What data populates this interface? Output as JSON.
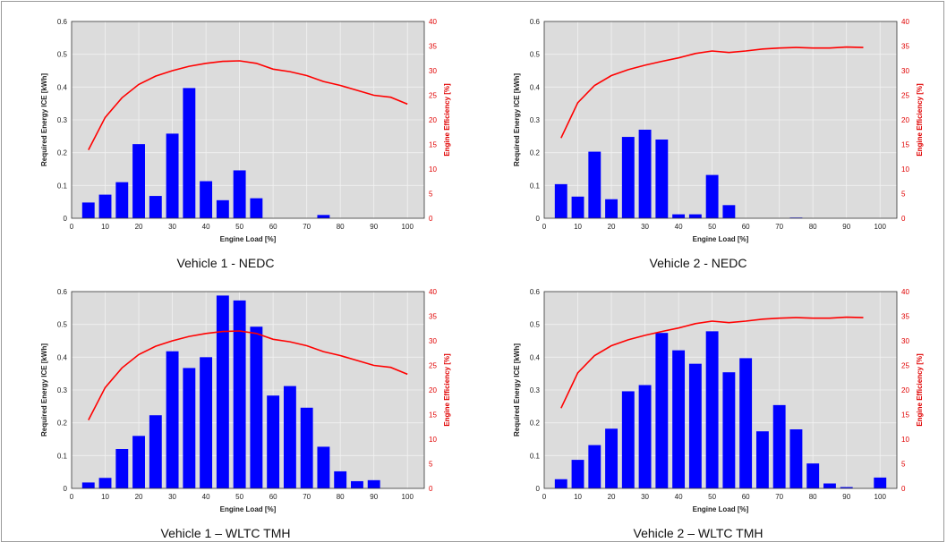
{
  "chart_data": [
    {
      "type": "bar",
      "title": "Vehicle 1 - NEDC",
      "xlabel": "Engine Load [%]",
      "ylabel": "Required Energy ICE [kWh]",
      "y2label": "Engine Efficiency [%]",
      "xlim": [
        0,
        105
      ],
      "ylim": [
        0,
        0.6
      ],
      "y2lim": [
        0,
        40
      ],
      "xticks": [
        0,
        10,
        20,
        30,
        40,
        50,
        60,
        70,
        80,
        90,
        100
      ],
      "yticks": [
        0,
        0.1,
        0.2,
        0.3,
        0.4,
        0.5,
        0.6
      ],
      "y2ticks": [
        0,
        5,
        10,
        15,
        20,
        25,
        30,
        35,
        40
      ],
      "grid": true,
      "bar_color": "#0000ff",
      "line_color": "#ff0000",
      "bars": {
        "x": [
          5,
          10,
          15,
          20,
          25,
          30,
          35,
          40,
          45,
          50,
          55,
          75
        ],
        "values": [
          0.048,
          0.072,
          0.11,
          0.226,
          0.068,
          0.258,
          0.397,
          0.113,
          0.055,
          0.146,
          0.061,
          0.01
        ]
      },
      "efficiency": {
        "x": [
          5,
          10,
          15,
          20,
          25,
          30,
          35,
          40,
          45,
          50,
          55,
          60,
          65,
          70,
          75,
          80,
          85,
          90,
          95,
          100
        ],
        "values": [
          13.9,
          20.5,
          24.5,
          27.2,
          28.9,
          30.0,
          30.9,
          31.5,
          31.9,
          32.0,
          31.5,
          30.3,
          29.8,
          29.0,
          27.8,
          27.0,
          26.0,
          25.0,
          24.6,
          23.2
        ]
      }
    },
    {
      "type": "bar",
      "title": "Vehicle 2 - NEDC",
      "xlabel": "Engine Load [%]",
      "ylabel": "Required Energy ICE [kWh]",
      "y2label": "Engine Efficiency [%]",
      "xlim": [
        0,
        105
      ],
      "ylim": [
        0,
        0.6
      ],
      "y2lim": [
        0,
        40
      ],
      "xticks": [
        0,
        10,
        20,
        30,
        40,
        50,
        60,
        70,
        80,
        90,
        100
      ],
      "yticks": [
        0,
        0.1,
        0.2,
        0.3,
        0.4,
        0.5,
        0.6
      ],
      "y2ticks": [
        0,
        5,
        10,
        15,
        20,
        25,
        30,
        35,
        40
      ],
      "grid": true,
      "bar_color": "#0000ff",
      "line_color": "#ff0000",
      "bars": {
        "x": [
          5,
          10,
          15,
          20,
          25,
          30,
          35,
          40,
          45,
          50,
          55,
          75
        ],
        "values": [
          0.104,
          0.066,
          0.203,
          0.058,
          0.248,
          0.27,
          0.24,
          0.012,
          0.012,
          0.132,
          0.04,
          0.002
        ]
      },
      "efficiency": {
        "x": [
          5,
          10,
          15,
          20,
          25,
          30,
          35,
          40,
          45,
          50,
          55,
          60,
          65,
          70,
          75,
          80,
          85,
          90,
          95
        ],
        "values": [
          16.3,
          23.5,
          27.0,
          29.0,
          30.2,
          31.1,
          31.9,
          32.6,
          33.5,
          34.0,
          33.7,
          34.0,
          34.4,
          34.6,
          34.7,
          34.6,
          34.6,
          34.8,
          34.7
        ]
      }
    },
    {
      "type": "bar",
      "title": "Vehicle 1 – WLTC TMH",
      "xlabel": "Engine Load [%]",
      "ylabel": "Required Energy ICE [kWh]",
      "y2label": "Engine Efficiency [%]",
      "xlim": [
        0,
        105
      ],
      "ylim": [
        0,
        0.6
      ],
      "y2lim": [
        0,
        40
      ],
      "xticks": [
        0,
        10,
        20,
        30,
        40,
        50,
        60,
        70,
        80,
        90,
        100
      ],
      "yticks": [
        0,
        0.1,
        0.2,
        0.3,
        0.4,
        0.5,
        0.6
      ],
      "y2ticks": [
        0,
        5,
        10,
        15,
        20,
        25,
        30,
        35,
        40
      ],
      "grid": true,
      "bar_color": "#0000ff",
      "line_color": "#ff0000",
      "bars": {
        "x": [
          5,
          10,
          15,
          20,
          25,
          30,
          35,
          40,
          45,
          50,
          55,
          60,
          65,
          70,
          75,
          80,
          85,
          90
        ],
        "values": [
          0.018,
          0.032,
          0.12,
          0.16,
          0.223,
          0.418,
          0.367,
          0.4,
          0.588,
          0.573,
          0.493,
          0.283,
          0.312,
          0.246,
          0.127,
          0.052,
          0.022,
          0.025
        ]
      },
      "efficiency": {
        "x": [
          5,
          10,
          15,
          20,
          25,
          30,
          35,
          40,
          45,
          50,
          55,
          60,
          65,
          70,
          75,
          80,
          85,
          90,
          95,
          100
        ],
        "values": [
          13.9,
          20.5,
          24.5,
          27.2,
          28.9,
          30.0,
          30.9,
          31.5,
          31.9,
          32.0,
          31.5,
          30.3,
          29.8,
          29.0,
          27.8,
          27.0,
          26.0,
          25.0,
          24.6,
          23.2
        ]
      }
    },
    {
      "type": "bar",
      "title": "Vehicle 2 – WLTC TMH",
      "xlabel": "Engine Load [%]",
      "ylabel": "Required Energy ICE [kWh]",
      "y2label": "Engine Efficiency [%]",
      "xlim": [
        0,
        105
      ],
      "ylim": [
        0,
        0.6
      ],
      "y2lim": [
        0,
        40
      ],
      "xticks": [
        0,
        10,
        20,
        30,
        40,
        50,
        60,
        70,
        80,
        90,
        100
      ],
      "yticks": [
        0,
        0.1,
        0.2,
        0.3,
        0.4,
        0.5,
        0.6
      ],
      "y2ticks": [
        0,
        5,
        10,
        15,
        20,
        25,
        30,
        35,
        40
      ],
      "grid": true,
      "bar_color": "#0000ff",
      "line_color": "#ff0000",
      "bars": {
        "x": [
          5,
          10,
          15,
          20,
          25,
          30,
          35,
          40,
          45,
          50,
          55,
          60,
          65,
          70,
          75,
          80,
          85,
          90,
          100
        ],
        "values": [
          0.028,
          0.087,
          0.132,
          0.182,
          0.296,
          0.315,
          0.474,
          0.421,
          0.38,
          0.479,
          0.354,
          0.397,
          0.174,
          0.254,
          0.18,
          0.076,
          0.015,
          0.004,
          0.033
        ]
      },
      "efficiency": {
        "x": [
          5,
          10,
          15,
          20,
          25,
          30,
          35,
          40,
          45,
          50,
          55,
          60,
          65,
          70,
          75,
          80,
          85,
          90,
          95
        ],
        "values": [
          16.3,
          23.5,
          27.0,
          29.0,
          30.2,
          31.1,
          31.9,
          32.6,
          33.5,
          34.0,
          33.7,
          34.0,
          34.4,
          34.6,
          34.7,
          34.6,
          34.6,
          34.8,
          34.7
        ]
      }
    }
  ]
}
